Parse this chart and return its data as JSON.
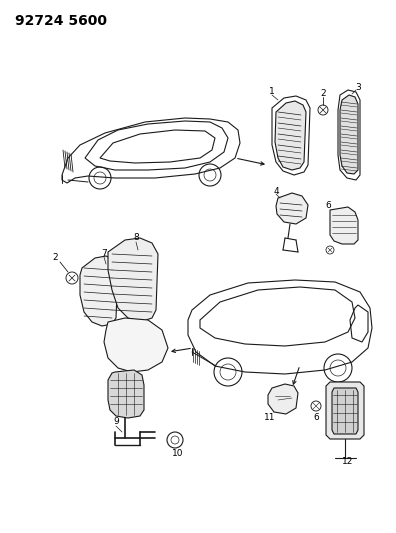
{
  "title": "92724 5600",
  "bg_color": "#ffffff",
  "line_color": "#1a1a1a",
  "title_fontsize": 10,
  "title_fontweight": "bold",
  "fig_width": 3.96,
  "fig_height": 5.33,
  "dpi": 100
}
